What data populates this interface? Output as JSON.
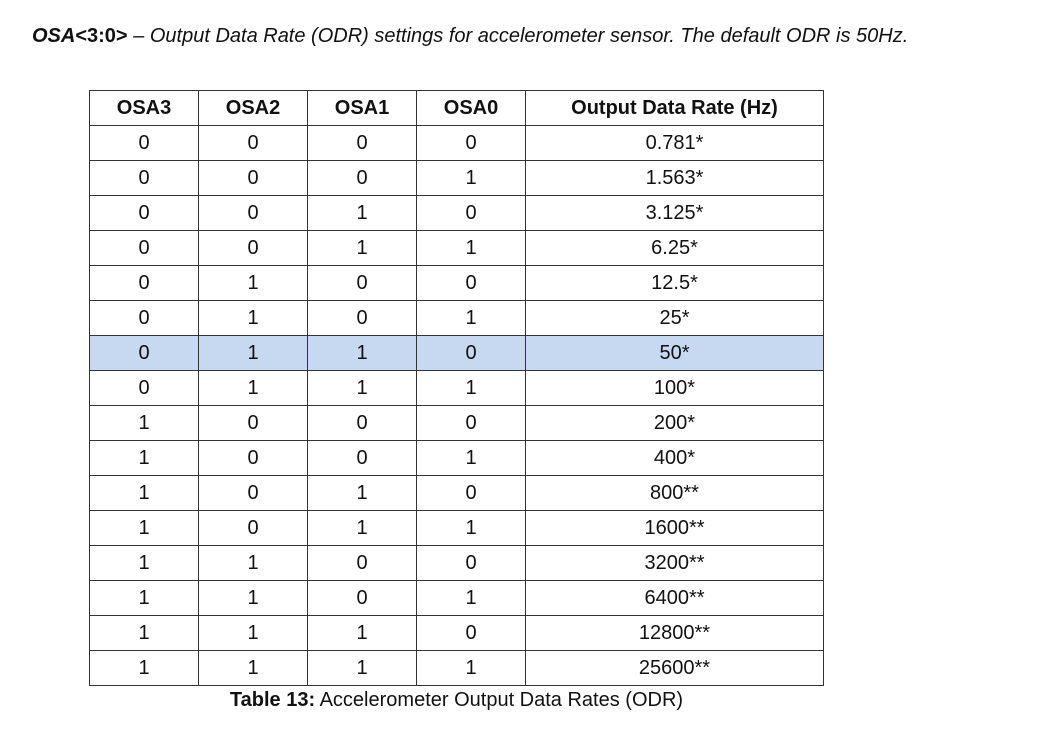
{
  "heading": {
    "register_name": "OSA",
    "register_bits": "<3:0>",
    "description": " – Output Data Rate (ODR) settings for accelerometer sensor. The default ODR is 50Hz."
  },
  "table": {
    "headers": [
      "OSA3",
      "OSA2",
      "OSA1",
      "OSA0",
      "Output Data Rate (Hz)"
    ],
    "highlight_color": "#c6d9f1",
    "highlight_row_index": 6,
    "rows": [
      [
        "0",
        "0",
        "0",
        "0",
        "0.781*"
      ],
      [
        "0",
        "0",
        "0",
        "1",
        "1.563*"
      ],
      [
        "0",
        "0",
        "1",
        "0",
        "3.125*"
      ],
      [
        "0",
        "0",
        "1",
        "1",
        "6.25*"
      ],
      [
        "0",
        "1",
        "0",
        "0",
        "12.5*"
      ],
      [
        "0",
        "1",
        "0",
        "1",
        "25*"
      ],
      [
        "0",
        "1",
        "1",
        "0",
        "50*"
      ],
      [
        "0",
        "1",
        "1",
        "1",
        "100*"
      ],
      [
        "1",
        "0",
        "0",
        "0",
        "200*"
      ],
      [
        "1",
        "0",
        "0",
        "1",
        "400*"
      ],
      [
        "1",
        "0",
        "1",
        "0",
        "800**"
      ],
      [
        "1",
        "0",
        "1",
        "1",
        "1600**"
      ],
      [
        "1",
        "1",
        "0",
        "0",
        "3200**"
      ],
      [
        "1",
        "1",
        "0",
        "1",
        "6400**"
      ],
      [
        "1",
        "1",
        "1",
        "0",
        "12800**"
      ],
      [
        "1",
        "1",
        "1",
        "1",
        "25600**"
      ]
    ]
  },
  "caption": {
    "label": "Table 13:",
    "text": " Accelerometer Output Data Rates (ODR)"
  }
}
